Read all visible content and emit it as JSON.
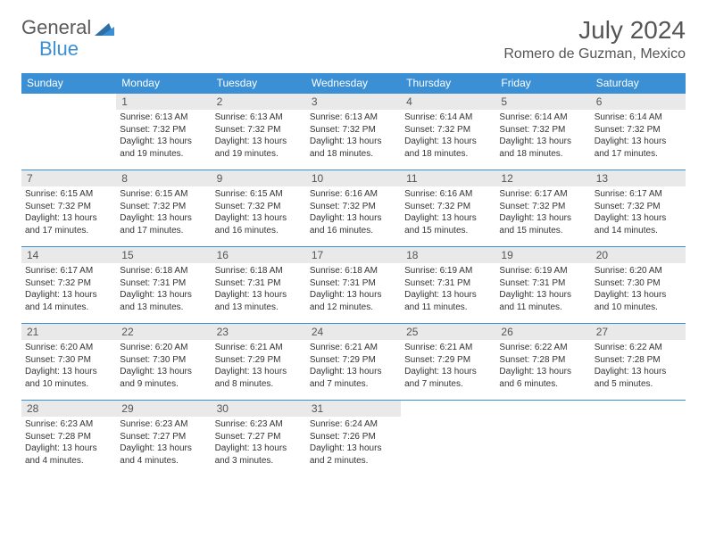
{
  "brand": {
    "part1": "General",
    "part2": "Blue"
  },
  "title": "July 2024",
  "location": "Romero de Guzman, Mexico",
  "style": {
    "accent": "#3b8fd4",
    "header_bg": "#3b8fd4",
    "header_fg": "#ffffff",
    "daybar_bg": "#e9e9e9",
    "text_color": "#333333",
    "page_bg": "#ffffff",
    "title_fontsize": 28,
    "location_fontsize": 16,
    "header_fontsize": 12,
    "daynum_fontsize": 12,
    "cell_fontsize": 10
  },
  "weekdays": [
    "Sunday",
    "Monday",
    "Tuesday",
    "Wednesday",
    "Thursday",
    "Friday",
    "Saturday"
  ],
  "weeks": [
    [
      null,
      {
        "n": "1",
        "sr": "Sunrise: 6:13 AM",
        "ss": "Sunset: 7:32 PM",
        "dl": "Daylight: 13 hours and 19 minutes."
      },
      {
        "n": "2",
        "sr": "Sunrise: 6:13 AM",
        "ss": "Sunset: 7:32 PM",
        "dl": "Daylight: 13 hours and 19 minutes."
      },
      {
        "n": "3",
        "sr": "Sunrise: 6:13 AM",
        "ss": "Sunset: 7:32 PM",
        "dl": "Daylight: 13 hours and 18 minutes."
      },
      {
        "n": "4",
        "sr": "Sunrise: 6:14 AM",
        "ss": "Sunset: 7:32 PM",
        "dl": "Daylight: 13 hours and 18 minutes."
      },
      {
        "n": "5",
        "sr": "Sunrise: 6:14 AM",
        "ss": "Sunset: 7:32 PM",
        "dl": "Daylight: 13 hours and 18 minutes."
      },
      {
        "n": "6",
        "sr": "Sunrise: 6:14 AM",
        "ss": "Sunset: 7:32 PM",
        "dl": "Daylight: 13 hours and 17 minutes."
      }
    ],
    [
      {
        "n": "7",
        "sr": "Sunrise: 6:15 AM",
        "ss": "Sunset: 7:32 PM",
        "dl": "Daylight: 13 hours and 17 minutes."
      },
      {
        "n": "8",
        "sr": "Sunrise: 6:15 AM",
        "ss": "Sunset: 7:32 PM",
        "dl": "Daylight: 13 hours and 17 minutes."
      },
      {
        "n": "9",
        "sr": "Sunrise: 6:15 AM",
        "ss": "Sunset: 7:32 PM",
        "dl": "Daylight: 13 hours and 16 minutes."
      },
      {
        "n": "10",
        "sr": "Sunrise: 6:16 AM",
        "ss": "Sunset: 7:32 PM",
        "dl": "Daylight: 13 hours and 16 minutes."
      },
      {
        "n": "11",
        "sr": "Sunrise: 6:16 AM",
        "ss": "Sunset: 7:32 PM",
        "dl": "Daylight: 13 hours and 15 minutes."
      },
      {
        "n": "12",
        "sr": "Sunrise: 6:17 AM",
        "ss": "Sunset: 7:32 PM",
        "dl": "Daylight: 13 hours and 15 minutes."
      },
      {
        "n": "13",
        "sr": "Sunrise: 6:17 AM",
        "ss": "Sunset: 7:32 PM",
        "dl": "Daylight: 13 hours and 14 minutes."
      }
    ],
    [
      {
        "n": "14",
        "sr": "Sunrise: 6:17 AM",
        "ss": "Sunset: 7:32 PM",
        "dl": "Daylight: 13 hours and 14 minutes."
      },
      {
        "n": "15",
        "sr": "Sunrise: 6:18 AM",
        "ss": "Sunset: 7:31 PM",
        "dl": "Daylight: 13 hours and 13 minutes."
      },
      {
        "n": "16",
        "sr": "Sunrise: 6:18 AM",
        "ss": "Sunset: 7:31 PM",
        "dl": "Daylight: 13 hours and 13 minutes."
      },
      {
        "n": "17",
        "sr": "Sunrise: 6:18 AM",
        "ss": "Sunset: 7:31 PM",
        "dl": "Daylight: 13 hours and 12 minutes."
      },
      {
        "n": "18",
        "sr": "Sunrise: 6:19 AM",
        "ss": "Sunset: 7:31 PM",
        "dl": "Daylight: 13 hours and 11 minutes."
      },
      {
        "n": "19",
        "sr": "Sunrise: 6:19 AM",
        "ss": "Sunset: 7:31 PM",
        "dl": "Daylight: 13 hours and 11 minutes."
      },
      {
        "n": "20",
        "sr": "Sunrise: 6:20 AM",
        "ss": "Sunset: 7:30 PM",
        "dl": "Daylight: 13 hours and 10 minutes."
      }
    ],
    [
      {
        "n": "21",
        "sr": "Sunrise: 6:20 AM",
        "ss": "Sunset: 7:30 PM",
        "dl": "Daylight: 13 hours and 10 minutes."
      },
      {
        "n": "22",
        "sr": "Sunrise: 6:20 AM",
        "ss": "Sunset: 7:30 PM",
        "dl": "Daylight: 13 hours and 9 minutes."
      },
      {
        "n": "23",
        "sr": "Sunrise: 6:21 AM",
        "ss": "Sunset: 7:29 PM",
        "dl": "Daylight: 13 hours and 8 minutes."
      },
      {
        "n": "24",
        "sr": "Sunrise: 6:21 AM",
        "ss": "Sunset: 7:29 PM",
        "dl": "Daylight: 13 hours and 7 minutes."
      },
      {
        "n": "25",
        "sr": "Sunrise: 6:21 AM",
        "ss": "Sunset: 7:29 PM",
        "dl": "Daylight: 13 hours and 7 minutes."
      },
      {
        "n": "26",
        "sr": "Sunrise: 6:22 AM",
        "ss": "Sunset: 7:28 PM",
        "dl": "Daylight: 13 hours and 6 minutes."
      },
      {
        "n": "27",
        "sr": "Sunrise: 6:22 AM",
        "ss": "Sunset: 7:28 PM",
        "dl": "Daylight: 13 hours and 5 minutes."
      }
    ],
    [
      {
        "n": "28",
        "sr": "Sunrise: 6:23 AM",
        "ss": "Sunset: 7:28 PM",
        "dl": "Daylight: 13 hours and 4 minutes."
      },
      {
        "n": "29",
        "sr": "Sunrise: 6:23 AM",
        "ss": "Sunset: 7:27 PM",
        "dl": "Daylight: 13 hours and 4 minutes."
      },
      {
        "n": "30",
        "sr": "Sunrise: 6:23 AM",
        "ss": "Sunset: 7:27 PM",
        "dl": "Daylight: 13 hours and 3 minutes."
      },
      {
        "n": "31",
        "sr": "Sunrise: 6:24 AM",
        "ss": "Sunset: 7:26 PM",
        "dl": "Daylight: 13 hours and 2 minutes."
      },
      null,
      null,
      null
    ]
  ]
}
